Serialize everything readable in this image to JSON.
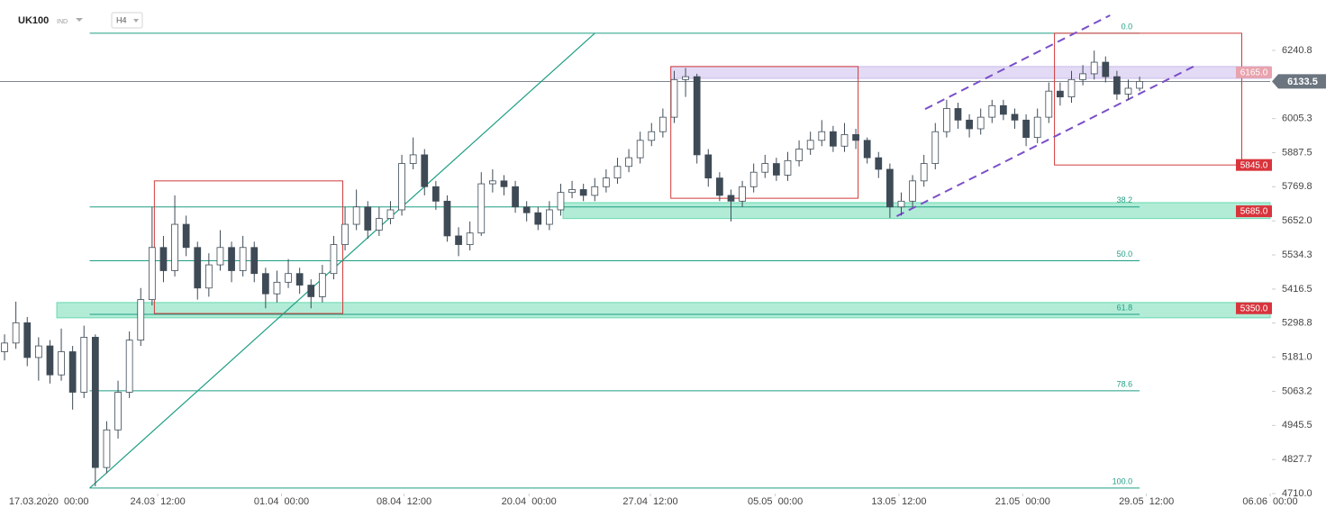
{
  "chart_data": {
    "type": "candlestick",
    "title": "UK100",
    "subtitle": "IND",
    "timeframe": "H4",
    "open": [
      5200,
      5230,
      5300,
      5180,
      5220,
      5120,
      5200,
      5060,
      5250,
      4800,
      4930,
      5060,
      5240,
      5380,
      5560,
      5480,
      5640,
      5560,
      5420,
      5500,
      5560,
      5480,
      5560,
      5470,
      5400,
      5440,
      5470,
      5430,
      5390,
      5470,
      5570,
      5640,
      5700,
      5620,
      5660,
      5690,
      5850,
      5880,
      5770,
      5720,
      5600,
      5570,
      5610,
      5780,
      5790,
      5770,
      5700,
      5680,
      5640,
      5690,
      5750,
      5760,
      5740,
      5770,
      5800,
      5840,
      5870,
      5930,
      5960,
      6010,
      6140,
      6150,
      5880,
      5800,
      5740,
      5720,
      5770,
      5820,
      5850,
      5810,
      5860,
      5900,
      5930,
      5960,
      5910,
      5950,
      5930,
      5870,
      5830,
      5700,
      5720,
      5790,
      5850,
      5960,
      6040,
      6000,
      5970,
      6010,
      6050,
      6020,
      6000,
      5940,
      6010,
      6100,
      6080,
      6140,
      6160,
      6200,
      6150,
      6090,
      6110
    ],
    "high": [
      5260,
      5373,
      5320,
      5250,
      5240,
      5280,
      5220,
      5290,
      5260,
      4960,
      5100,
      5270,
      5420,
      5700,
      5600,
      5740,
      5670,
      5580,
      5540,
      5620,
      5580,
      5600,
      5580,
      5490,
      5480,
      5520,
      5490,
      5450,
      5500,
      5600,
      5700,
      5760,
      5720,
      5700,
      5720,
      5880,
      5940,
      5900,
      5790,
      5740,
      5630,
      5650,
      5820,
      5830,
      5810,
      5790,
      5720,
      5700,
      5720,
      5780,
      5790,
      5780,
      5800,
      5830,
      5870,
      5900,
      5960,
      5990,
      6040,
      6170,
      6180,
      6160,
      5900,
      5820,
      5760,
      5790,
      5850,
      5880,
      5870,
      5890,
      5930,
      5960,
      6000,
      5980,
      5990,
      5970,
      5940,
      5890,
      5850,
      5750,
      5810,
      5880,
      5990,
      6070,
      6060,
      6020,
      6040,
      6070,
      6070,
      6040,
      6020,
      6040,
      6130,
      6130,
      6170,
      6190,
      6240,
      6220,
      6170,
      6140,
      6150
    ],
    "low": [
      5170,
      5210,
      5150,
      5100,
      5090,
      5100,
      5000,
      5040,
      4735,
      4780,
      4900,
      5040,
      5220,
      5360,
      5440,
      5460,
      5530,
      5380,
      5390,
      5480,
      5440,
      5460,
      5440,
      5350,
      5370,
      5420,
      5400,
      5350,
      5370,
      5450,
      5550,
      5620,
      5590,
      5600,
      5640,
      5670,
      5830,
      5740,
      5690,
      5580,
      5530,
      5550,
      5600,
      5750,
      5740,
      5680,
      5650,
      5620,
      5620,
      5670,
      5730,
      5720,
      5720,
      5750,
      5780,
      5820,
      5850,
      5910,
      5940,
      5990,
      6080,
      5850,
      5770,
      5720,
      5650,
      5700,
      5750,
      5800,
      5790,
      5790,
      5840,
      5880,
      5910,
      5890,
      5890,
      5900,
      5850,
      5800,
      5662,
      5670,
      5700,
      5770,
      5830,
      5940,
      5970,
      5940,
      5950,
      5990,
      6000,
      5970,
      5910,
      5920,
      5990,
      6050,
      6060,
      6120,
      6140,
      6130,
      6070,
      6070,
      6100
    ],
    "close": [
      5230,
      5300,
      5180,
      5220,
      5120,
      5200,
      5060,
      5250,
      4800,
      4930,
      5060,
      5240,
      5380,
      5560,
      5480,
      5640,
      5560,
      5420,
      5500,
      5560,
      5480,
      5560,
      5470,
      5400,
      5440,
      5470,
      5430,
      5390,
      5470,
      5570,
      5640,
      5700,
      5620,
      5660,
      5690,
      5850,
      5880,
      5770,
      5720,
      5600,
      5570,
      5610,
      5780,
      5790,
      5770,
      5700,
      5680,
      5640,
      5690,
      5750,
      5760,
      5740,
      5770,
      5800,
      5840,
      5870,
      5930,
      5960,
      6010,
      6140,
      6150,
      5880,
      5800,
      5740,
      5720,
      5770,
      5820,
      5850,
      5810,
      5860,
      5900,
      5930,
      5960,
      5910,
      5950,
      5930,
      5870,
      5830,
      5700,
      5720,
      5790,
      5850,
      5960,
      6040,
      6000,
      5970,
      6010,
      6050,
      6020,
      6000,
      5940,
      6010,
      6100,
      6080,
      6140,
      6160,
      6200,
      6150,
      6090,
      6110,
      6133.5
    ],
    "up_color": "#ffffff",
    "down_color": "#3e4b56",
    "wick_color": "#3e4b56",
    "xlim": [
      -0.4,
      111.5
    ],
    "xticks": [
      {
        "value": 3.9,
        "label": "17.03.2020  00:00"
      },
      {
        "value": 13.5,
        "label": "24.03  12:00"
      },
      {
        "value": 24.4,
        "label": "01.04  00:00"
      },
      {
        "value": 35.2,
        "label": "08.04  12:00"
      },
      {
        "value": 46.2,
        "label": "20.04  00:00"
      },
      {
        "value": 56.9,
        "label": "27.04  12:00"
      },
      {
        "value": 67.9,
        "label": "05.05  00:00"
      },
      {
        "value": 78.8,
        "label": "13.05  12:00"
      },
      {
        "value": 89.7,
        "label": "21.05  00:00"
      },
      {
        "value": 100.6,
        "label": "29.05  12:00"
      },
      {
        "value": 111.5,
        "label": "06.06  00:00"
      }
    ],
    "ylim": [
      4710,
      6414.8
    ],
    "yticks": [
      6240.8,
      6005.3,
      5887.5,
      5769.8,
      {
        "value": 5652,
        "label": "5652.0"
      },
      5534.3,
      5416.5,
      5298.8,
      {
        "value": 5181,
        "label": "5181.0"
      },
      5063.2,
      4945.5,
      4827.7,
      {
        "value": 4710,
        "label": "4710.0"
      }
    ],
    "fib": {
      "x": [
        7.5,
        100
      ],
      "color": "#1f9e84",
      "levels": [
        {
          "price": 6300,
          "ratio": "0.0"
        },
        {
          "price": 5700,
          "ratio": "38.2"
        },
        {
          "price": 5514,
          "ratio": "50.0"
        },
        {
          "price": 5329,
          "ratio": "61.8"
        },
        {
          "price": 5065,
          "ratio": "78.6"
        },
        {
          "price": 4729,
          "ratio": "100.0"
        }
      ]
    },
    "zones": [
      {
        "from": 5660,
        "to": 5715,
        "x0": 49.2,
        "color": "#3fcf9a"
      },
      {
        "from": 5317,
        "to": 5370,
        "x0": 4.6,
        "color": "#3fcf9a"
      },
      {
        "from": 6144,
        "to": 6185,
        "x0": 58.7,
        "color": "#b9a6e6"
      }
    ],
    "boxes": [
      {
        "x": [
          13.2,
          29.8
        ],
        "y": [
          5332,
          5790
        ],
        "color": "#d23a3a"
      },
      {
        "x": [
          58.7,
          75.2
        ],
        "y": [
          5730,
          6185
        ],
        "color": "#d23a3a"
      },
      {
        "x": [
          92.5,
          109
        ],
        "y": [
          5845,
          6300
        ],
        "color": "#d23a3a"
      }
    ],
    "trendlines": [
      {
        "x": [
          7.5,
          52
        ],
        "y": [
          4729,
          6300
        ],
        "color": "#1f9e84",
        "dashed": false
      },
      {
        "x": [
          81.1,
          97.4
        ],
        "y": [
          6038,
          6362
        ],
        "color": "#7a4fc8",
        "dashed": true
      },
      {
        "x": [
          78.6,
          104.9
        ],
        "y": [
          5668,
          6188
        ],
        "color": "#7a4fc8",
        "dashed": true
      }
    ],
    "price_tags": [
      {
        "value": 6165,
        "label": "6165.0",
        "color": "#e9a3ae"
      },
      {
        "value": 5845,
        "label": "5845.0",
        "color": "#d9343c"
      },
      {
        "value": 5685,
        "label": "5685.0",
        "color": "#d9343c"
      },
      {
        "value": 5350,
        "label": "5350.0",
        "color": "#d9343c"
      }
    ],
    "last_price": {
      "value": 6133.5,
      "color": "#6b7580"
    }
  }
}
